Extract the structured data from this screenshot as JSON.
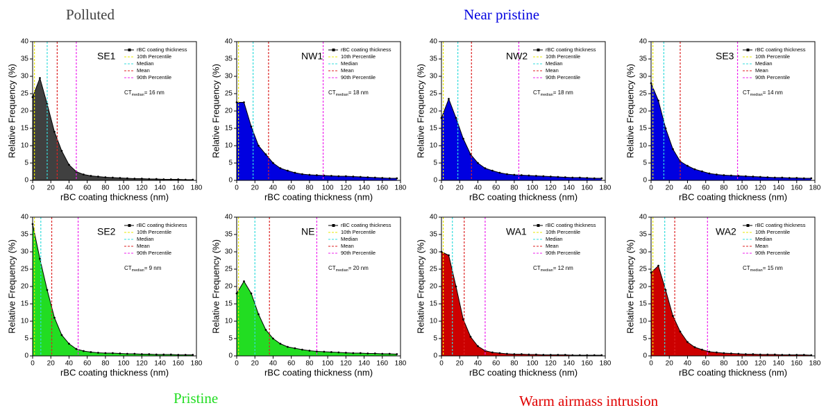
{
  "group_labels": [
    {
      "text": "Polluted",
      "color": "#404040"
    },
    {
      "text": "Near pristine",
      "color": "#0000e0"
    },
    {
      "text": "Pristine",
      "color": "#22dd22"
    },
    {
      "text": "Warm airmass intrusion",
      "color": "#e00000"
    }
  ],
  "chart_data": [
    {
      "type": "area",
      "title": "SE1",
      "xlabel": "rBC coating thickness (nm)",
      "ylabel": "Relative Frequency (%)",
      "xlim": [
        0,
        180
      ],
      "ylim": [
        0,
        40
      ],
      "xticks": [
        0,
        20,
        40,
        60,
        80,
        100,
        120,
        140,
        160,
        180
      ],
      "yticks": [
        0,
        5,
        10,
        15,
        20,
        25,
        30,
        35,
        40
      ],
      "x": [
        0,
        8,
        16,
        24,
        32,
        40,
        48,
        56,
        64,
        72,
        80,
        88,
        96,
        104,
        112,
        120,
        128,
        136,
        144,
        152,
        160,
        168,
        176
      ],
      "series": [
        {
          "name": "rBC coating thickness",
          "color": "#404040",
          "values": [
            24,
            29.5,
            22,
            14,
            8.5,
            4.5,
            2.5,
            1.7,
            1.3,
            1.1,
            0.9,
            0.8,
            0.7,
            0.6,
            0.5,
            0.5,
            0.4,
            0.4,
            0.3,
            0.3,
            0.3,
            0.2,
            0.2
          ]
        }
      ],
      "reference_lines": [
        {
          "name": "10th Percentile",
          "color": "#e8e800",
          "value": 2
        },
        {
          "name": "Median",
          "color": "#33dddd",
          "value": 16
        },
        {
          "name": "Mean",
          "color": "#dd2222",
          "value": 27
        },
        {
          "name": "90th Percentile",
          "color": "#ee22ee",
          "value": 48
        }
      ],
      "annotation": {
        "main": "CT",
        "sub": "median",
        "rest": "= 16 nm"
      }
    },
    {
      "type": "area",
      "title": "NW1",
      "xlabel": "rBC coating thickness (nm)",
      "ylabel": "Relative Frequency (%)",
      "xlim": [
        0,
        180
      ],
      "ylim": [
        0,
        40
      ],
      "xticks": [
        0,
        20,
        40,
        60,
        80,
        100,
        120,
        140,
        160,
        180
      ],
      "yticks": [
        0,
        5,
        10,
        15,
        20,
        25,
        30,
        35,
        40
      ],
      "x": [
        0,
        8,
        16,
        24,
        32,
        40,
        48,
        56,
        64,
        72,
        80,
        88,
        96,
        104,
        112,
        120,
        128,
        136,
        144,
        152,
        160,
        168,
        176
      ],
      "series": [
        {
          "name": "rBC coating thickness",
          "color": "#0000e0",
          "values": [
            22.5,
            22.5,
            15.5,
            10,
            7.5,
            5,
            3.5,
            2.8,
            2.2,
            1.8,
            1.6,
            1.5,
            1.4,
            1.3,
            1.2,
            1.2,
            1.1,
            1,
            0.9,
            0.8,
            0.7,
            0.6,
            0.6
          ]
        }
      ],
      "reference_lines": [
        {
          "name": "10th Percentile",
          "color": "#e8e800",
          "value": 2
        },
        {
          "name": "Median",
          "color": "#33dddd",
          "value": 18
        },
        {
          "name": "Mean",
          "color": "#dd2222",
          "value": 35
        },
        {
          "name": "90th Percentile",
          "color": "#ee22ee",
          "value": 95
        }
      ],
      "annotation": {
        "main": "CT",
        "sub": "median",
        "rest": "= 18 nm"
      }
    },
    {
      "type": "area",
      "title": "NW2",
      "xlabel": "rBC coating thickness (nm)",
      "ylabel": "Relative Frequency (%)",
      "xlim": [
        0,
        180
      ],
      "ylim": [
        0,
        40
      ],
      "xticks": [
        0,
        20,
        40,
        60,
        80,
        100,
        120,
        140,
        160,
        180
      ],
      "yticks": [
        0,
        5,
        10,
        15,
        20,
        25,
        30,
        35,
        40
      ],
      "x": [
        0,
        8,
        16,
        24,
        32,
        40,
        48,
        56,
        64,
        72,
        80,
        88,
        96,
        104,
        112,
        120,
        128,
        136,
        144,
        152,
        160,
        168,
        176
      ],
      "series": [
        {
          "name": "rBC coating thickness",
          "color": "#0000e0",
          "values": [
            18,
            23.5,
            18,
            12,
            7.5,
            5,
            3.5,
            2.8,
            2.2,
            1.8,
            1.6,
            1.5,
            1.4,
            1.3,
            1.2,
            1.1,
            1,
            0.9,
            0.8,
            0.8,
            0.7,
            0.6,
            0.6
          ]
        }
      ],
      "reference_lines": [
        {
          "name": "10th Percentile",
          "color": "#e8e800",
          "value": 2
        },
        {
          "name": "Median",
          "color": "#33dddd",
          "value": 18
        },
        {
          "name": "Mean",
          "color": "#dd2222",
          "value": 33
        },
        {
          "name": "90th Percentile",
          "color": "#ee22ee",
          "value": 85
        }
      ],
      "annotation": {
        "main": "CT",
        "sub": "median",
        "rest": "= 18 nm"
      }
    },
    {
      "type": "area",
      "title": "SE3",
      "xlabel": "rBC coating thickness (nm)",
      "ylabel": "Relative Frequency (%)",
      "xlim": [
        0,
        180
      ],
      "ylim": [
        0,
        40
      ],
      "xticks": [
        0,
        20,
        40,
        60,
        80,
        100,
        120,
        140,
        160,
        180
      ],
      "yticks": [
        0,
        5,
        10,
        15,
        20,
        25,
        30,
        35,
        40
      ],
      "x": [
        0,
        8,
        16,
        24,
        32,
        40,
        48,
        56,
        64,
        72,
        80,
        88,
        96,
        104,
        112,
        120,
        128,
        136,
        144,
        152,
        160,
        168,
        176
      ],
      "series": [
        {
          "name": "rBC coating thickness",
          "color": "#0000e0",
          "values": [
            28,
            23,
            15,
            9,
            5.5,
            4.2,
            3.2,
            2.6,
            2,
            1.7,
            1.5,
            1.4,
            1.3,
            1.2,
            1.1,
            1,
            0.9,
            0.8,
            0.8,
            0.7,
            0.7,
            0.6,
            0.6
          ]
        }
      ],
      "reference_lines": [
        {
          "name": "10th Percentile",
          "color": "#e8e800",
          "value": 2
        },
        {
          "name": "Median",
          "color": "#33dddd",
          "value": 14
        },
        {
          "name": "Mean",
          "color": "#dd2222",
          "value": 32
        },
        {
          "name": "90th Percentile",
          "color": "#ee22ee",
          "value": 95
        }
      ],
      "annotation": {
        "main": "CT",
        "sub": "median",
        "rest": "= 14 nm"
      }
    },
    {
      "type": "area",
      "title": "SE2",
      "xlabel": "rBC coating thickness (nm)",
      "ylabel": "Relative Frequency (%)",
      "xlim": [
        0,
        180
      ],
      "ylim": [
        0,
        40
      ],
      "xticks": [
        0,
        20,
        40,
        60,
        80,
        100,
        120,
        140,
        160,
        180
      ],
      "yticks": [
        0,
        5,
        10,
        15,
        20,
        25,
        30,
        35,
        40
      ],
      "x": [
        0,
        8,
        16,
        24,
        32,
        40,
        48,
        56,
        64,
        72,
        80,
        88,
        96,
        104,
        112,
        120,
        128,
        136,
        144,
        152,
        160,
        168,
        176
      ],
      "series": [
        {
          "name": "rBC coating thickness",
          "color": "#22dd22",
          "values": [
            38,
            28,
            19,
            11,
            6,
            3.5,
            2,
            1.4,
            1.1,
            0.9,
            0.8,
            0.8,
            0.7,
            0.6,
            0.6,
            0.5,
            0.5,
            0.4,
            0.4,
            0.4,
            0.3,
            0.3,
            0.3
          ]
        }
      ],
      "reference_lines": [
        {
          "name": "10th Percentile",
          "color": "#e8e800",
          "value": 2
        },
        {
          "name": "Median",
          "color": "#33dddd",
          "value": 9
        },
        {
          "name": "Mean",
          "color": "#dd2222",
          "value": 21
        },
        {
          "name": "90th Percentile",
          "color": "#ee22ee",
          "value": 50
        }
      ],
      "annotation": {
        "main": "CT",
        "sub": "median",
        "rest": "= 9 nm"
      }
    },
    {
      "type": "area",
      "title": "NE",
      "xlabel": "rBC coating thickness (nm)",
      "ylabel": "Relative Frequency (%)",
      "xlim": [
        0,
        180
      ],
      "ylim": [
        0,
        40
      ],
      "xticks": [
        0,
        20,
        40,
        60,
        80,
        100,
        120,
        140,
        160,
        180
      ],
      "yticks": [
        0,
        5,
        10,
        15,
        20,
        25,
        30,
        35,
        40
      ],
      "x": [
        0,
        8,
        16,
        24,
        32,
        40,
        48,
        56,
        64,
        72,
        80,
        88,
        96,
        104,
        112,
        120,
        128,
        136,
        144,
        152,
        160,
        168,
        176
      ],
      "series": [
        {
          "name": "rBC coating thickness",
          "color": "#22dd22",
          "values": [
            18,
            21.5,
            18,
            12,
            7.5,
            5,
            3.5,
            2.6,
            2.2,
            1.8,
            1.5,
            1.3,
            1.2,
            1.1,
            1,
            0.9,
            0.8,
            0.8,
            0.7,
            0.7,
            0.6,
            0.6,
            0.5
          ]
        }
      ],
      "reference_lines": [
        {
          "name": "10th Percentile",
          "color": "#e8e800",
          "value": 2
        },
        {
          "name": "Median",
          "color": "#33dddd",
          "value": 20
        },
        {
          "name": "Mean",
          "color": "#dd2222",
          "value": 36
        },
        {
          "name": "90th Percentile",
          "color": "#ee22ee",
          "value": 88
        }
      ],
      "annotation": {
        "main": "CT",
        "sub": "median",
        "rest": "= 20 nm"
      }
    },
    {
      "type": "area",
      "title": "WA1",
      "xlabel": "rBC coating thickness (nm)",
      "ylabel": "Relative Frequency (%)",
      "xlim": [
        0,
        180
      ],
      "ylim": [
        0,
        40
      ],
      "xticks": [
        0,
        20,
        40,
        60,
        80,
        100,
        120,
        140,
        160,
        180
      ],
      "yticks": [
        0,
        5,
        10,
        15,
        20,
        25,
        30,
        35,
        40
      ],
      "x": [
        0,
        8,
        16,
        24,
        32,
        40,
        48,
        56,
        64,
        72,
        80,
        88,
        96,
        104,
        112,
        120,
        128,
        136,
        144,
        152,
        160,
        168,
        176
      ],
      "series": [
        {
          "name": "rBC coating thickness",
          "color": "#cc0000",
          "values": [
            30,
            29,
            20,
            10.5,
            5.5,
            2.8,
            1.5,
            1,
            0.8,
            0.6,
            0.5,
            0.5,
            0.4,
            0.4,
            0.3,
            0.3,
            0.3,
            0.3,
            0.2,
            0.2,
            0.2,
            0.2,
            0.2
          ]
        }
      ],
      "reference_lines": [
        {
          "name": "10th Percentile",
          "color": "#e8e800",
          "value": 2
        },
        {
          "name": "Median",
          "color": "#33dddd",
          "value": 12
        },
        {
          "name": "Mean",
          "color": "#dd2222",
          "value": 25
        },
        {
          "name": "90th Percentile",
          "color": "#ee22ee",
          "value": 48
        }
      ],
      "annotation": {
        "main": "CT",
        "sub": "median",
        "rest": "= 12 nm"
      }
    },
    {
      "type": "area",
      "title": "WA2",
      "xlabel": "rBC coating thickness (nm)",
      "ylabel": "Relative Frequency (%)",
      "xlim": [
        0,
        180
      ],
      "ylim": [
        0,
        40
      ],
      "xticks": [
        0,
        20,
        40,
        60,
        80,
        100,
        120,
        140,
        160,
        180
      ],
      "yticks": [
        0,
        5,
        10,
        15,
        20,
        25,
        30,
        35,
        40
      ],
      "x": [
        0,
        8,
        16,
        24,
        32,
        40,
        48,
        56,
        64,
        72,
        80,
        88,
        96,
        104,
        112,
        120,
        128,
        136,
        144,
        152,
        160,
        168,
        176
      ],
      "series": [
        {
          "name": "rBC coating thickness",
          "color": "#cc0000",
          "values": [
            24,
            26,
            19,
            11.5,
            7,
            4,
            2.5,
            1.8,
            1.2,
            1,
            0.8,
            0.7,
            0.6,
            0.5,
            0.5,
            0.4,
            0.4,
            0.4,
            0.3,
            0.3,
            0.3,
            0.3,
            0.2
          ]
        }
      ],
      "reference_lines": [
        {
          "name": "10th Percentile",
          "color": "#e8e800",
          "value": 2
        },
        {
          "name": "Median",
          "color": "#33dddd",
          "value": 15
        },
        {
          "name": "Mean",
          "color": "#dd2222",
          "value": 26
        },
        {
          "name": "90th Percentile",
          "color": "#ee22ee",
          "value": 62
        }
      ],
      "annotation": {
        "main": "CT",
        "sub": "median",
        "rest": "= 15 nm"
      }
    }
  ]
}
